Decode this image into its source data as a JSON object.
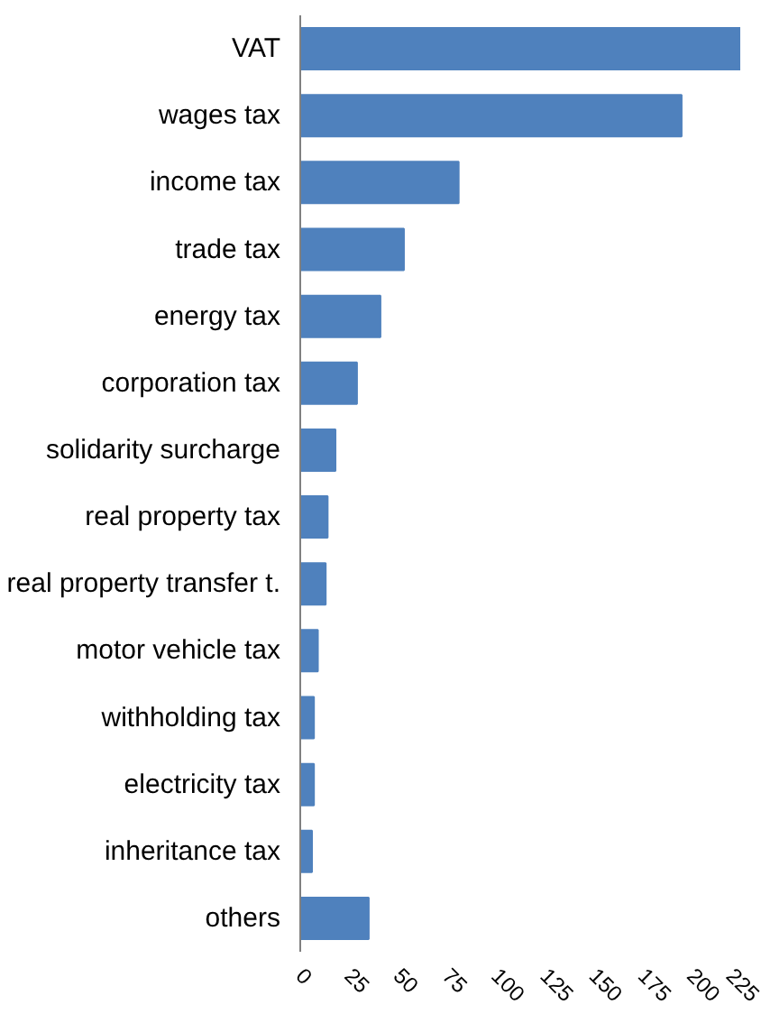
{
  "chart_data": {
    "type": "bar",
    "orientation": "horizontal",
    "categories": [
      "VAT",
      "wages tax",
      "income tax",
      "trade tax",
      "energy tax",
      "corporation tax",
      "solidarity surcharge",
      "real property tax",
      "real property transfer t.",
      "motor vehicle tax",
      "withholding tax",
      "electricity tax",
      "inheritance tax",
      "others"
    ],
    "series": [
      {
        "color": "#4f81bd",
        "values": [
          225,
          195,
          81,
          53,
          41,
          29,
          18,
          14,
          13,
          9,
          7,
          7,
          6,
          35
        ]
      }
    ],
    "xlim": [
      0,
      225
    ],
    "xticks": [
      0,
      25,
      50,
      75,
      100,
      125,
      150,
      175,
      200,
      225
    ],
    "grid": false
  }
}
